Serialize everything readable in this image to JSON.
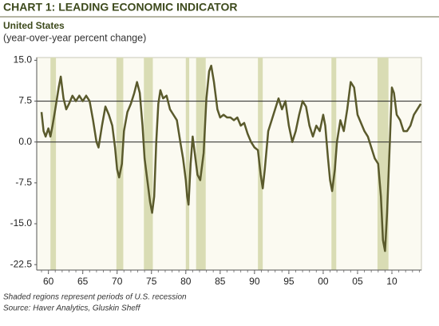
{
  "chart_data": {
    "type": "line",
    "title": "CHART 1: LEADING ECONOMIC INDICATOR",
    "subtitle": "United States",
    "ylabel": "(year-over-year percent change)",
    "notes": [
      "Shaded regions represent periods of U.S. recession",
      "Source: Haver Analytics, Gluskin Sheff"
    ],
    "xlim": [
      1958.3,
      2014.3
    ],
    "xticks": [
      {
        "value": 1960,
        "label": "60"
      },
      {
        "value": 1965,
        "label": "65"
      },
      {
        "value": 1970,
        "label": "70"
      },
      {
        "value": 1975,
        "label": "75"
      },
      {
        "value": 1980,
        "label": "80"
      },
      {
        "value": 1985,
        "label": "85"
      },
      {
        "value": 1990,
        "label": "90"
      },
      {
        "value": 1995,
        "label": "95"
      },
      {
        "value": 2000,
        "label": "00"
      },
      {
        "value": 2005,
        "label": "05"
      },
      {
        "value": 2010,
        "label": "10"
      }
    ],
    "ylim": [
      -23.5,
      15.5
    ],
    "yticks": [
      {
        "value": 15,
        "label": "15.0"
      },
      {
        "value": 7.5,
        "label": "7.5"
      },
      {
        "value": 0,
        "label": "0.0"
      },
      {
        "value": -7.5,
        "label": "-7.5"
      },
      {
        "value": -15,
        "label": "-15.0"
      },
      {
        "value": -22.5,
        "label": "-22.5"
      }
    ],
    "hlines": [
      7.5,
      0
    ],
    "shaded_regions": [
      [
        1960.3,
        1961.1
      ],
      [
        1969.9,
        1970.9
      ],
      [
        1973.9,
        1975.2
      ],
      [
        1980.0,
        1980.5
      ],
      [
        1981.5,
        1982.9
      ],
      [
        1990.5,
        1991.2
      ],
      [
        2001.2,
        2001.9
      ],
      [
        2007.9,
        2009.5
      ]
    ],
    "shade_color": "#d9dcb4",
    "x": [
      1959.0,
      1959.3,
      1959.6,
      1960.0,
      1960.3,
      1960.6,
      1961.0,
      1961.5,
      1961.8,
      1962.2,
      1962.6,
      1963.0,
      1963.5,
      1964.0,
      1964.5,
      1965.0,
      1965.5,
      1966.0,
      1966.5,
      1967.0,
      1967.3,
      1967.8,
      1968.3,
      1968.8,
      1969.3,
      1969.7,
      1970.0,
      1970.3,
      1970.7,
      1971.0,
      1971.5,
      1972.0,
      1972.5,
      1972.9,
      1973.3,
      1973.7,
      1974.0,
      1974.5,
      1974.8,
      1975.1,
      1975.4,
      1975.7,
      1976.0,
      1976.3,
      1976.7,
      1977.2,
      1977.7,
      1978.2,
      1978.7,
      1979.2,
      1979.6,
      1980.0,
      1980.2,
      1980.4,
      1980.7,
      1981.0,
      1981.3,
      1981.7,
      1982.1,
      1982.6,
      1983.0,
      1983.4,
      1983.7,
      1984.1,
      1984.6,
      1985.0,
      1985.5,
      1986.0,
      1986.5,
      1987.0,
      1987.5,
      1988.0,
      1988.5,
      1989.0,
      1989.5,
      1990.0,
      1990.5,
      1990.9,
      1991.2,
      1991.5,
      1992.0,
      1992.5,
      1993.0,
      1993.5,
      1994.0,
      1994.5,
      1995.0,
      1995.5,
      1996.0,
      1996.5,
      1997.0,
      1997.5,
      1998.0,
      1998.5,
      1999.0,
      1999.5,
      2000.0,
      2000.3,
      2000.7,
      2001.0,
      2001.3,
      2001.7,
      2002.0,
      2002.5,
      2003.0,
      2003.5,
      2004.0,
      2004.5,
      2005.0,
      2005.5,
      2006.0,
      2006.5,
      2007.0,
      2007.5,
      2008.0,
      2008.4,
      2008.7,
      2009.0,
      2009.3,
      2009.7,
      2010.0,
      2010.3,
      2010.7,
      2011.2,
      2011.7,
      2012.2,
      2012.7,
      2013.2,
      2013.7,
      2014.2
    ],
    "series": [
      {
        "color": "#5a5a2c",
        "values": [
          5.5,
          2,
          1,
          2.5,
          1,
          3,
          6,
          10,
          12,
          8,
          6,
          7,
          8.5,
          7.5,
          8.5,
          7.5,
          8.5,
          7.5,
          4,
          0,
          -1,
          3,
          6.5,
          5,
          3,
          -1,
          -5,
          -6.5,
          -4,
          2,
          5.5,
          7,
          9,
          11,
          9,
          3,
          -3,
          -8,
          -11,
          -13,
          -10,
          0,
          7,
          9.5,
          8,
          8.5,
          6,
          5,
          4,
          0,
          -3,
          -7,
          -10,
          -11.5,
          -4,
          1,
          -2,
          -6,
          -7,
          -2,
          8,
          13,
          14,
          11,
          6,
          4.5,
          5,
          4.5,
          4.5,
          4,
          4.5,
          3,
          3.5,
          1.5,
          0,
          -1,
          -1.5,
          -6,
          -8.5,
          -5,
          2,
          4,
          6,
          8,
          6,
          7.5,
          3,
          0,
          2,
          5,
          7.5,
          6.5,
          3,
          1,
          3,
          2,
          5,
          3,
          -3,
          -7,
          -9,
          -5,
          0,
          4,
          2,
          6,
          11,
          10,
          5,
          3.5,
          2,
          1,
          -1,
          -3,
          -4,
          -10,
          -18,
          -20,
          -13,
          0,
          10,
          9,
          5,
          4,
          2,
          2,
          3,
          5,
          6,
          7
        ]
      }
    ]
  }
}
